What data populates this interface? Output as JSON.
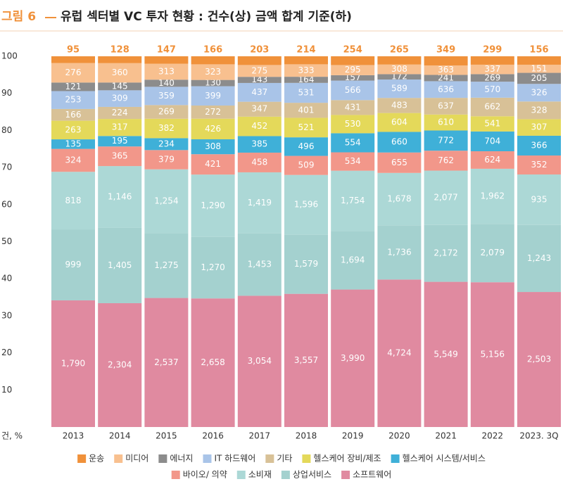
{
  "chart_data": {
    "type": "bar",
    "stacking": "percent",
    "figure_label": "그림 6",
    "title": "유럽 섹터별 VC 투자 현황 : 건수(상) 금액 합계 기준(하)",
    "ylabel": "건, %",
    "categories": [
      "2013",
      "2014",
      "2015",
      "2016",
      "2017",
      "2018",
      "2019",
      "2020",
      "2021",
      "2022",
      "2023. 3Q"
    ],
    "ylim": [
      0,
      100
    ],
    "yticks": [
      10,
      20,
      30,
      40,
      50,
      60,
      70,
      80,
      90,
      100
    ],
    "series": [
      {
        "name": "운송",
        "color": "#f0913a",
        "values": [
          95,
          128,
          147,
          166,
          203,
          214,
          254,
          265,
          349,
          299,
          156
        ]
      },
      {
        "name": "미디어",
        "color": "#f8c08f",
        "values": [
          276,
          360,
          313,
          323,
          275,
          333,
          295,
          308,
          363,
          337,
          151
        ]
      },
      {
        "name": "에너지",
        "color": "#8c8c8c",
        "values": [
          121,
          145,
          140,
          130,
          143,
          164,
          157,
          172,
          241,
          269,
          205
        ]
      },
      {
        "name": "IT 하드웨어",
        "color": "#a9c4e8",
        "values": [
          253,
          309,
          359,
          399,
          437,
          531,
          566,
          589,
          636,
          570,
          326
        ]
      },
      {
        "name": "기타",
        "color": "#d8c197",
        "values": [
          166,
          224,
          269,
          272,
          347,
          401,
          431,
          483,
          637,
          662,
          328
        ]
      },
      {
        "name": "헬스케어 장비/제조",
        "color": "#e4d95a",
        "values": [
          263,
          317,
          382,
          426,
          452,
          521,
          530,
          604,
          610,
          541,
          307
        ]
      },
      {
        "name": "헬스케어 시스템/서비스",
        "color": "#3fb0d8",
        "values": [
          135,
          195,
          234,
          308,
          385,
          496,
          554,
          660,
          772,
          704,
          366
        ]
      },
      {
        "name": "바이오/ 의약",
        "color": "#f2978a",
        "values": [
          324,
          365,
          379,
          421,
          458,
          509,
          534,
          655,
          762,
          624,
          352
        ]
      },
      {
        "name": "소비재",
        "color": "#acd8d6",
        "values": [
          818,
          1146,
          1254,
          1290,
          1419,
          1596,
          1754,
          1678,
          2077,
          1962,
          935
        ],
        "value_labels": [
          "818",
          "1,146",
          "1,254",
          "1,290",
          "1,419",
          "1,596",
          "1,754",
          "1,678",
          "2,077",
          "1,962",
          "935"
        ]
      },
      {
        "name": "상업서비스",
        "color": "#a4d1cf",
        "values": [
          999,
          1405,
          1275,
          1270,
          1453,
          1579,
          1694,
          1736,
          2172,
          2079,
          1243
        ],
        "value_labels": [
          "999",
          "1,405",
          "1,275",
          "1,270",
          "1,453",
          "1,579",
          "1,694",
          "1,736",
          "2,172",
          "2,079",
          "1,243"
        ]
      },
      {
        "name": "소프트웨어",
        "color": "#e08aa0",
        "values": [
          1790,
          2304,
          2537,
          2658,
          3054,
          3557,
          3990,
          4724,
          5549,
          5156,
          2503
        ],
        "value_labels": [
          "1,790",
          "2,304",
          "2,537",
          "2,658",
          "3,054",
          "3,557",
          "3,990",
          "4,724",
          "5,549",
          "5,156",
          "2,503"
        ]
      }
    ]
  }
}
